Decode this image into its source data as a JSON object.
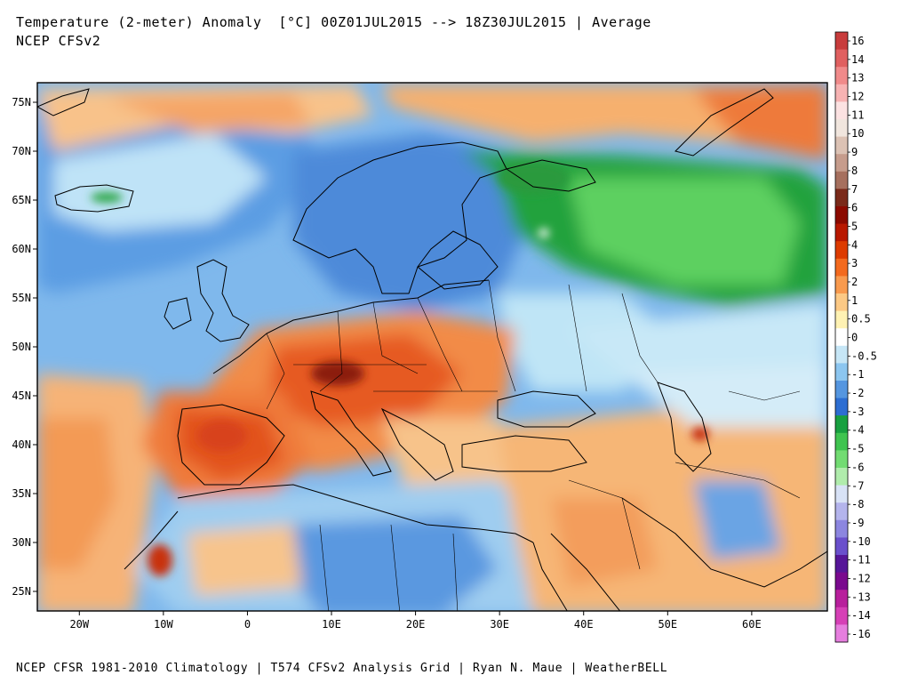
{
  "header": {
    "title": "Temperature (2-meter) Anomaly  [°C] 00Z01JUL2015 --> 18Z30JUL2015 | Average",
    "subtitle": "NCEP CFSv2"
  },
  "footer": {
    "credit": "NCEP CFSR 1981-2010 Climatology | T574 CFSv2 Analysis Grid | Ryan N. Maue | WeatherBELL"
  },
  "map": {
    "projection": "equirectangular",
    "lon_range": [
      -25,
      69
    ],
    "lat_range": [
      23,
      77
    ],
    "lat_ticks": [
      {
        "value": 75,
        "label": "75N"
      },
      {
        "value": 70,
        "label": "70N"
      },
      {
        "value": 65,
        "label": "65N"
      },
      {
        "value": 60,
        "label": "60N"
      },
      {
        "value": 55,
        "label": "55N"
      },
      {
        "value": 50,
        "label": "50N"
      },
      {
        "value": 45,
        "label": "45N"
      },
      {
        "value": 40,
        "label": "40N"
      },
      {
        "value": 35,
        "label": "35N"
      },
      {
        "value": 30,
        "label": "30N"
      },
      {
        "value": 25,
        "label": "25N"
      }
    ],
    "lon_ticks": [
      {
        "value": -20,
        "label": "20W"
      },
      {
        "value": -10,
        "label": "10W"
      },
      {
        "value": 0,
        "label": "0"
      },
      {
        "value": 10,
        "label": "10E"
      },
      {
        "value": 20,
        "label": "20E"
      },
      {
        "value": 30,
        "label": "30E"
      },
      {
        "value": 40,
        "label": "40E"
      },
      {
        "value": 50,
        "label": "50E"
      },
      {
        "value": 60,
        "label": "60E"
      }
    ],
    "anomaly_regions": [
      {
        "region": "Western Atlantic",
        "anomaly_c": 1.5
      },
      {
        "region": "Northern Atlantic / Norwegian Sea",
        "anomaly_c": -1
      },
      {
        "region": "Scandinavia",
        "anomaly_c": -2
      },
      {
        "region": "Northwest Russia",
        "anomaly_c": -4
      },
      {
        "region": "Iberia",
        "anomaly_c": 2.5
      },
      {
        "region": "France / Central Europe",
        "anomaly_c": 3
      },
      {
        "region": "Alps",
        "anomaly_c": 6
      },
      {
        "region": "North Africa",
        "anomaly_c": -1
      },
      {
        "region": "Middle East",
        "anomaly_c": 1
      },
      {
        "region": "Barents Sea",
        "anomaly_c": 2
      }
    ]
  },
  "colorbar": {
    "labels": [
      "16",
      "14",
      "13",
      "12",
      "11",
      "10",
      "9",
      "8",
      "7",
      "6",
      "5",
      "4",
      "3",
      "2",
      "1",
      "0.5",
      "0",
      "-0.5",
      "-1",
      "-2",
      "-3",
      "-4",
      "-5",
      "-6",
      "-7",
      "-8",
      "-9",
      "-10",
      "-11",
      "-12",
      "-13",
      "-14",
      "-16"
    ],
    "colors": [
      "#c83c3c",
      "#e06060",
      "#f08a8a",
      "#f7b3b3",
      "#fce2e2",
      "#f1e6de",
      "#dcc2b4",
      "#c69c8c",
      "#a6705e",
      "#7a2a1a",
      "#8b0a00",
      "#b81800",
      "#dd3b00",
      "#f36a1e",
      "#f89a4e",
      "#fcc985",
      "#fff2b3",
      "#ffffff",
      "#c6e6f6",
      "#8cc6f0",
      "#5596e0",
      "#2d6ed2",
      "#18a040",
      "#3fc450",
      "#72dc72",
      "#b0ecac",
      "#d8e2f6",
      "#b4b4ec",
      "#8c86e0",
      "#6a50cc",
      "#561698",
      "#7a0a8e",
      "#b8209c",
      "#d640b6",
      "#e67ede"
    ]
  }
}
